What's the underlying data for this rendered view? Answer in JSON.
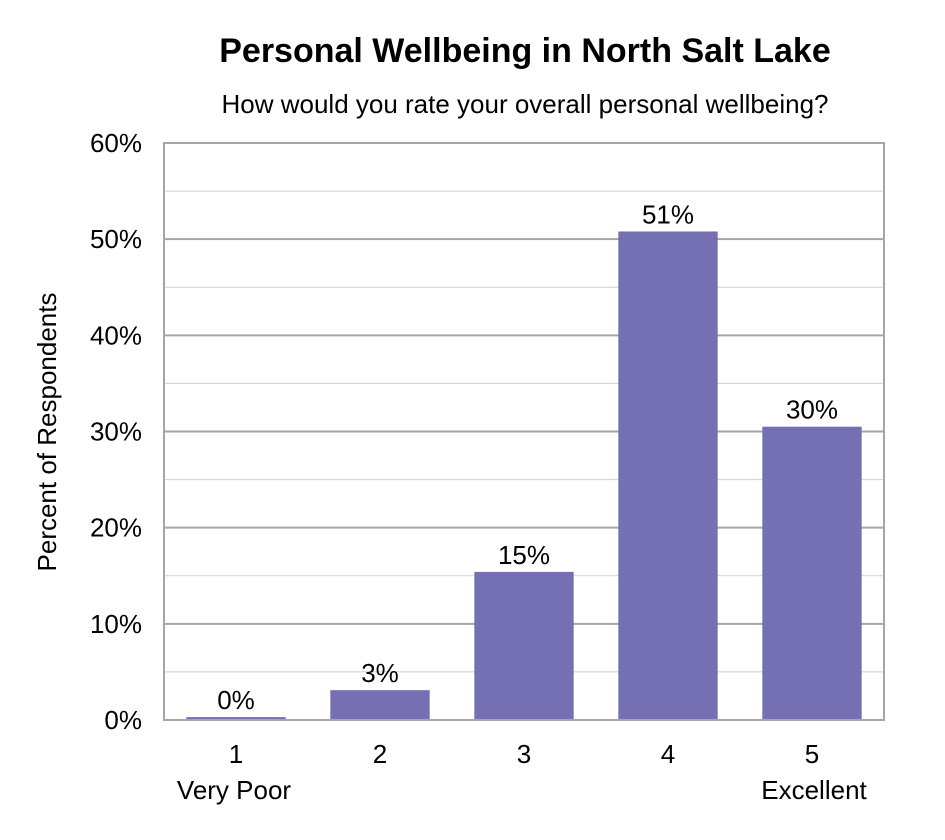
{
  "chart_data": {
    "type": "bar",
    "title": "Personal Wellbeing in North Salt Lake",
    "subtitle": "How would you rate your overall personal wellbeing?",
    "ylabel": "Percent of Respondents",
    "xlabel": "",
    "categories": [
      "1",
      "2",
      "3",
      "4",
      "5"
    ],
    "category_sublabels": [
      "Very Poor",
      "",
      "",
      "",
      "Excellent"
    ],
    "values": [
      0.3,
      3.1,
      15.4,
      50.8,
      30.5
    ],
    "data_labels": [
      "0%",
      "3%",
      "15%",
      "51%",
      "30%"
    ],
    "ylim": [
      0,
      60
    ],
    "yticks": [
      0,
      10,
      20,
      30,
      40,
      50,
      60
    ],
    "ytick_labels": [
      "0%",
      "10%",
      "20%",
      "30%",
      "40%",
      "50%",
      "60%"
    ],
    "grid": true,
    "legend": "none",
    "bar_color": "#7570b3"
  }
}
